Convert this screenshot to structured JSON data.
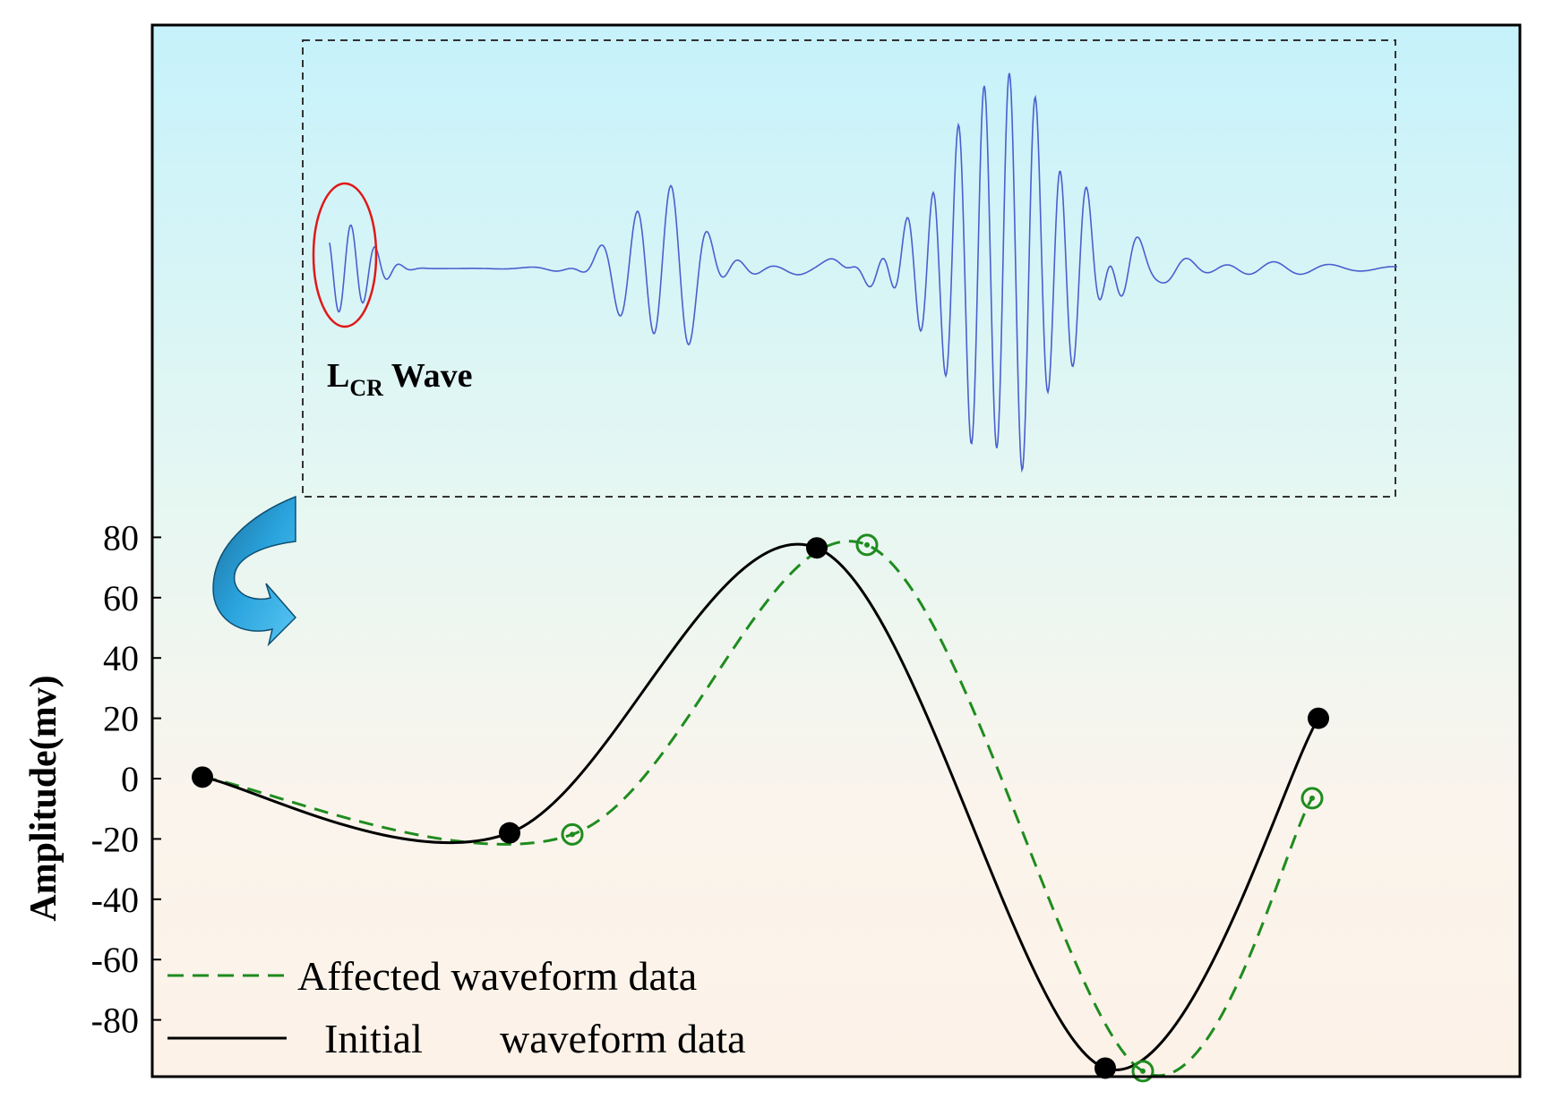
{
  "chart_data": {
    "type": "line",
    "title": "",
    "xlabel": "",
    "ylabel": "Amplitude(mv)",
    "ylim": [
      -100,
      90
    ],
    "yticks": [
      80,
      60,
      40,
      20,
      0,
      -20,
      -40,
      -60,
      -80
    ],
    "xlim": [
      0,
      8.95
    ],
    "grid": false,
    "legend": {
      "placement": "bottom-left"
    },
    "background_gradient": [
      "#c6f2fb",
      "#e6f7f2",
      "#fbf4ec",
      "#fcf2e8"
    ],
    "series": [
      {
        "name": "Initial  waveform data",
        "color": "#000000",
        "style": "solid",
        "marker": "filled-circle",
        "points": [
          [
            0.4,
            0.5
          ],
          [
            2.85,
            -18
          ],
          [
            5.3,
            76.5
          ],
          [
            7.6,
            -96
          ],
          [
            9.3,
            20
          ]
        ]
      },
      {
        "name": "Affected waveform data",
        "color": "#1e8c1e",
        "style": "dashed",
        "marker": "dotted-circle",
        "points": [
          [
            3.35,
            -18.5
          ],
          [
            5.7,
            77.5
          ],
          [
            7.9,
            -97
          ],
          [
            9.25,
            -6.5
          ]
        ]
      }
    ],
    "legend_entries": [
      {
        "label": "Affected waveform data",
        "series": 1
      },
      {
        "label": "Initial",
        "label2": "waveform data",
        "series": 0
      }
    ],
    "inset": {
      "label_main": "L",
      "label_sub": "CR",
      "label_rest": " Wave",
      "signal_color": "#4a5fcf",
      "highlight_color": "#e01818",
      "arrow_color": "#1a86c2"
    }
  }
}
